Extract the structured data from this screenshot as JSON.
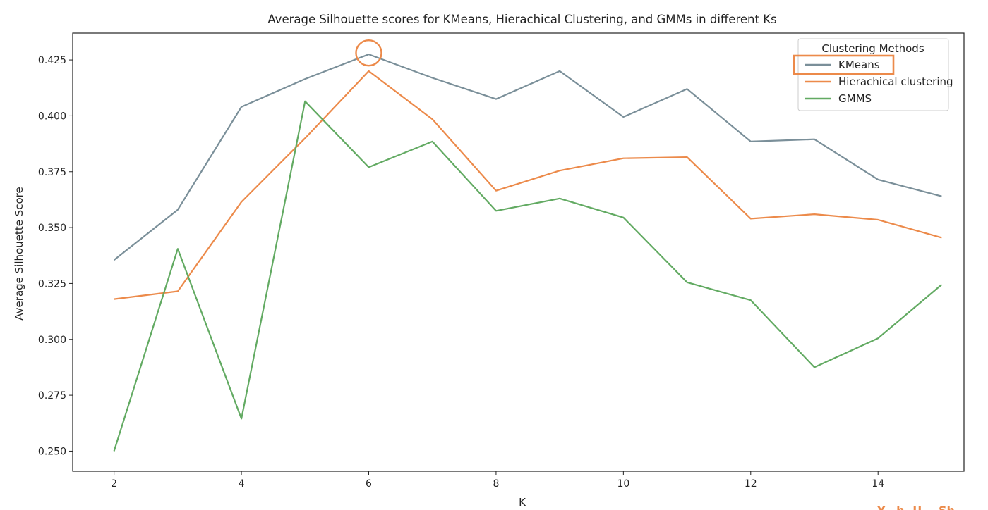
{
  "chart_data": {
    "type": "line",
    "title": "Average Silhouette scores for KMeans, Hierachical Clustering, and GMMs in different Ks",
    "xlabel": "K",
    "ylabel": "Average Silhouette Score",
    "xlim": [
      1.35,
      15.35
    ],
    "ylim": [
      0.241,
      0.437
    ],
    "xticks": [
      2,
      4,
      6,
      8,
      10,
      12,
      14
    ],
    "xtick_labels": [
      "2",
      "4",
      "6",
      "8",
      "10",
      "12",
      "14"
    ],
    "yticks": [
      0.25,
      0.275,
      0.3,
      0.325,
      0.35,
      0.375,
      0.4,
      0.425
    ],
    "ytick_labels": [
      "0.250",
      "0.275",
      "0.300",
      "0.325",
      "0.350",
      "0.375",
      "0.400",
      "0.425"
    ],
    "grid": false,
    "legend": {
      "title": "Clustering Methods",
      "placement": "top-right"
    },
    "x": [
      2,
      3,
      4,
      5,
      6,
      7,
      8,
      9,
      10,
      11,
      12,
      13,
      14,
      15
    ],
    "series": [
      {
        "name": "KMeans",
        "color": "#7a8f99",
        "values": [
          0.3355,
          0.358,
          0.404,
          0.4165,
          0.4275,
          0.417,
          0.4075,
          0.42,
          0.3995,
          0.412,
          0.3885,
          0.3895,
          0.3715,
          0.364
        ]
      },
      {
        "name": "Hierachical clustering",
        "color": "#ec8a4a",
        "values": [
          0.318,
          0.3215,
          0.3615,
          0.39,
          0.42,
          0.3985,
          0.3665,
          0.3755,
          0.381,
          0.3815,
          0.354,
          0.356,
          0.3535,
          0.3455
        ]
      },
      {
        "name": "GMMS",
        "color": "#62aa62",
        "values": [
          0.25,
          0.3405,
          0.2645,
          0.4065,
          0.377,
          0.3885,
          0.3575,
          0.363,
          0.3545,
          0.3255,
          0.3175,
          0.2875,
          0.3005,
          0.3245
        ]
      }
    ],
    "annotations": [
      {
        "type": "circle",
        "x": 6,
        "y": 0.4275,
        "color": "#ec8a4a",
        "target": "KMeans peak"
      },
      {
        "type": "box",
        "target": "legend-entry-KMeans",
        "color": "#ec8a4a"
      }
    ]
  },
  "corner_text": "Y...h. U... Sh..."
}
